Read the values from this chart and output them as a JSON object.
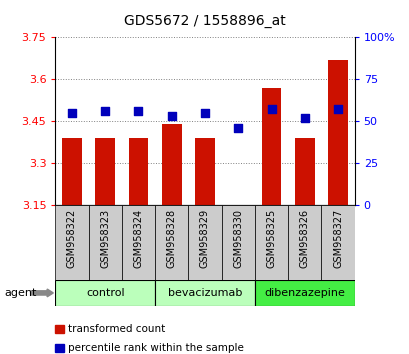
{
  "title": "GDS5672 / 1558896_at",
  "samples": [
    "GSM958322",
    "GSM958323",
    "GSM958324",
    "GSM958328",
    "GSM958329",
    "GSM958330",
    "GSM958325",
    "GSM958326",
    "GSM958327"
  ],
  "transformed_count": [
    3.39,
    3.39,
    3.39,
    3.44,
    3.39,
    3.15,
    3.57,
    3.39,
    3.67
  ],
  "percentile_rank": [
    55,
    56,
    56,
    53,
    55,
    46,
    57,
    52,
    57
  ],
  "ylim_left": [
    3.15,
    3.75
  ],
  "ylim_right": [
    0,
    100
  ],
  "yticks_left": [
    3.15,
    3.3,
    3.45,
    3.6,
    3.75
  ],
  "ytick_labels_left": [
    "3.15",
    "3.3",
    "3.45",
    "3.6",
    "3.75"
  ],
  "yticks_right": [
    0,
    25,
    50,
    75,
    100
  ],
  "ytick_labels_right": [
    "0",
    "25",
    "50",
    "75",
    "100%"
  ],
  "groups": [
    {
      "label": "control",
      "indices": [
        0,
        1,
        2
      ],
      "color": "#bbffbb"
    },
    {
      "label": "bevacizumab",
      "indices": [
        3,
        4,
        5
      ],
      "color": "#bbffbb"
    },
    {
      "label": "dibenzazepine",
      "indices": [
        6,
        7,
        8
      ],
      "color": "#44ee44"
    }
  ],
  "bar_color": "#cc1100",
  "dot_color": "#0000bb",
  "bar_bottom": 3.15,
  "bar_width": 0.6,
  "dot_size": 28,
  "legend_items": [
    {
      "color": "#cc1100",
      "label": "transformed count"
    },
    {
      "color": "#0000bb",
      "label": "percentile rank within the sample"
    }
  ],
  "agent_label": "agent",
  "title_fontsize": 10,
  "tick_fontsize": 8,
  "sample_fontsize": 7,
  "group_fontsize": 8,
  "legend_fontsize": 7.5
}
